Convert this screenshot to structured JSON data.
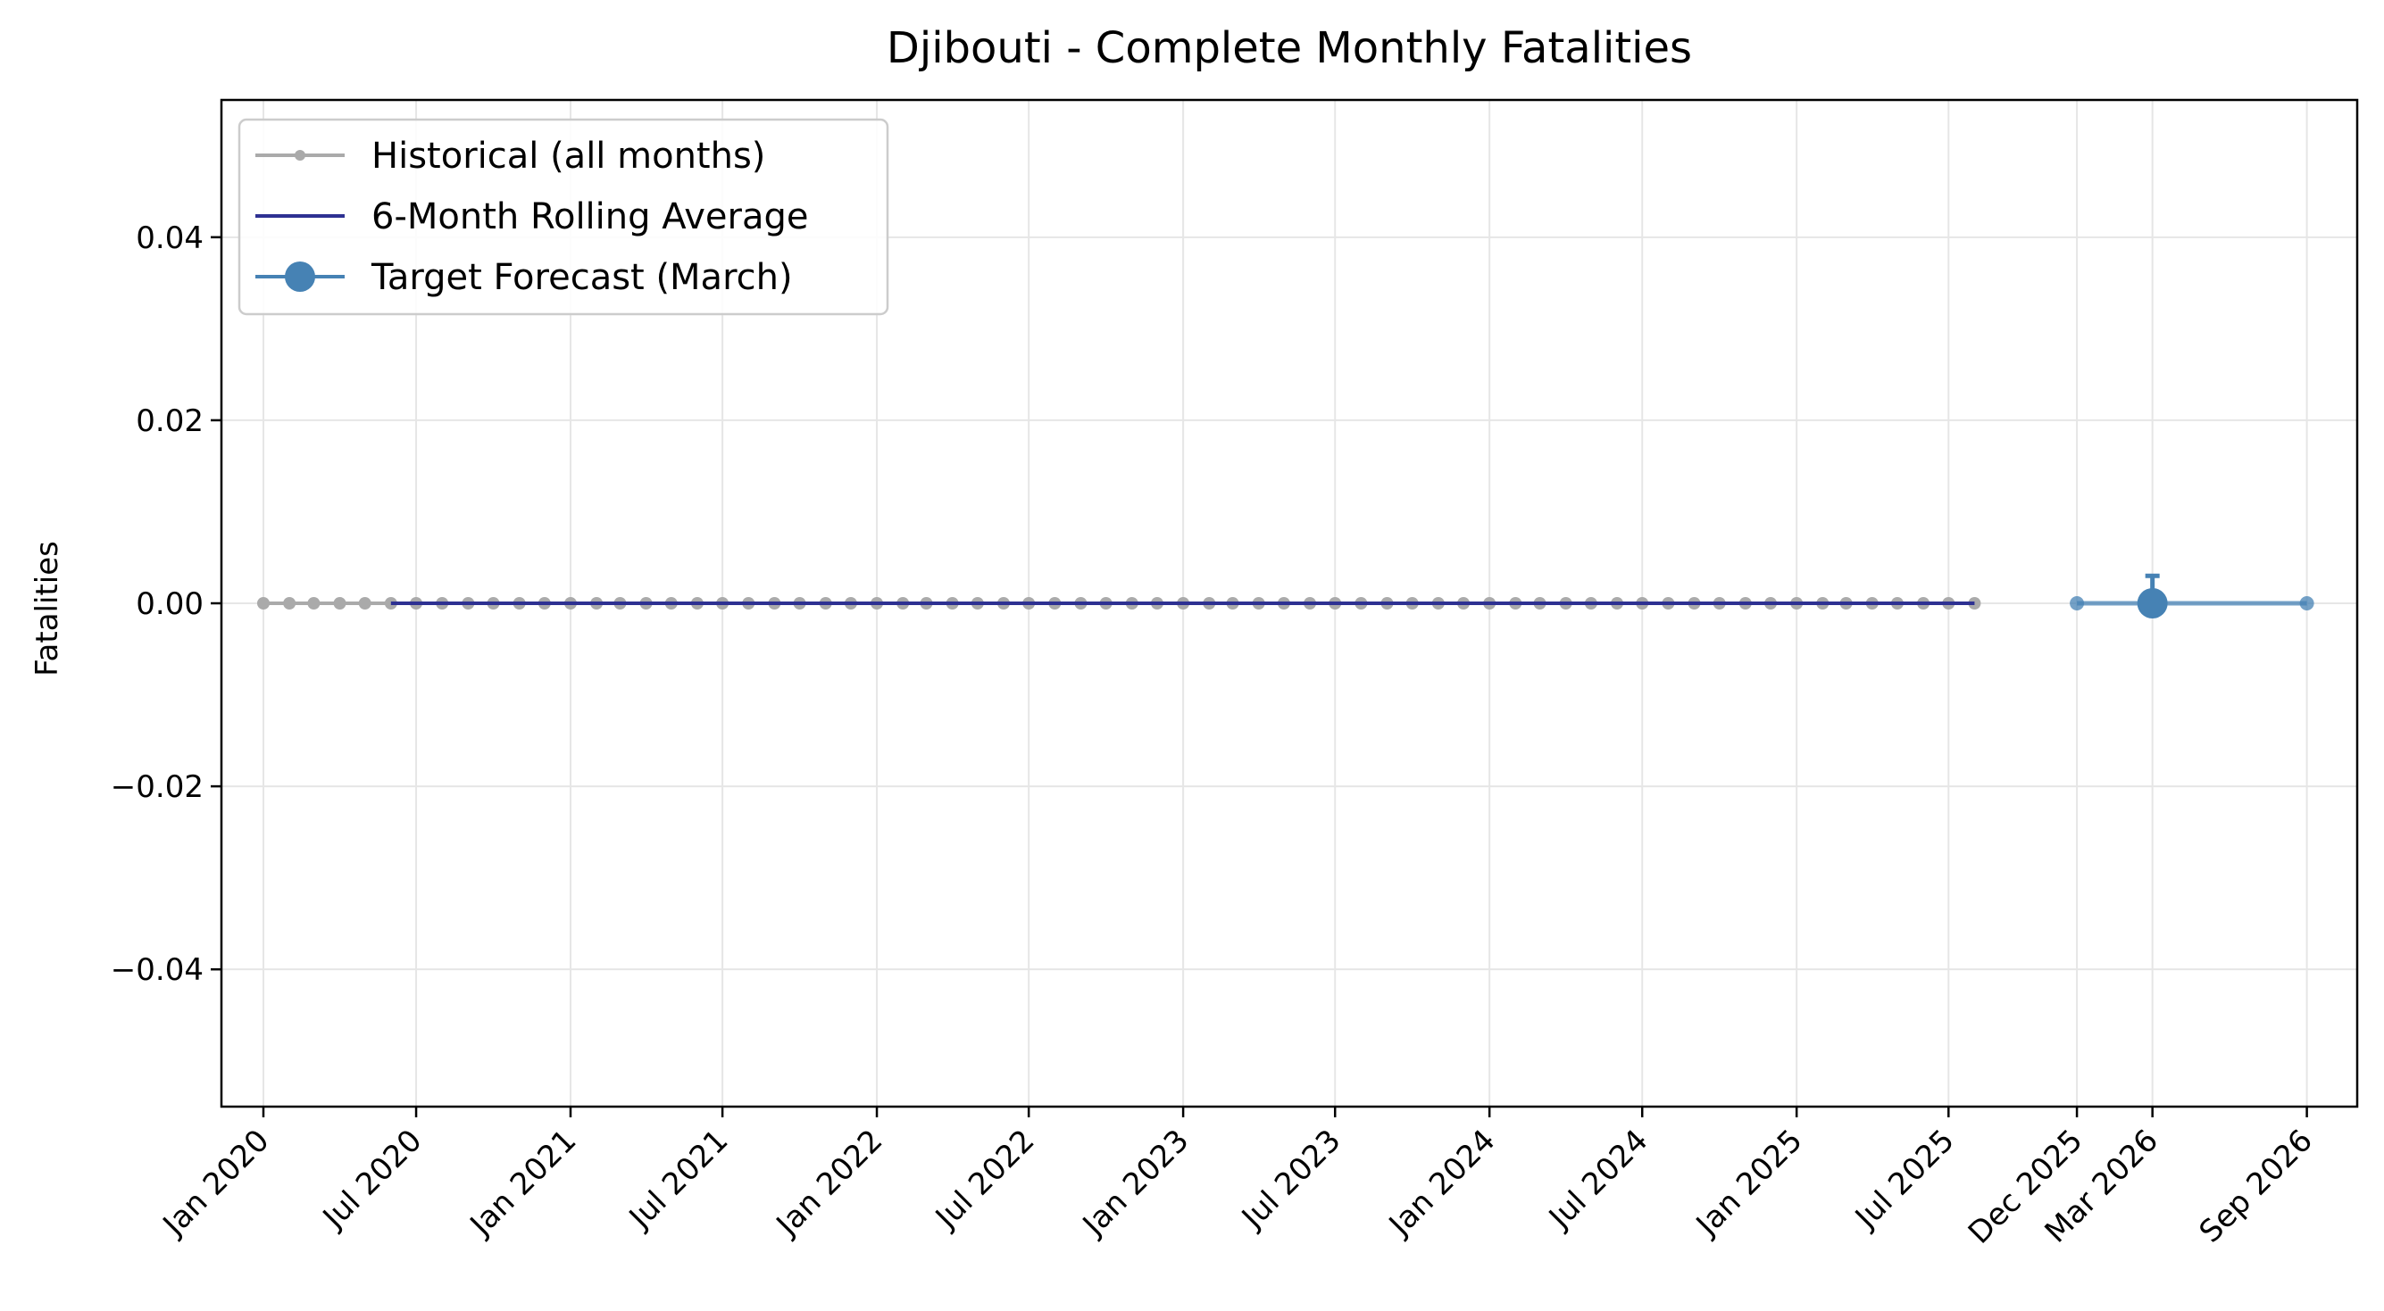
{
  "chart_data": {
    "type": "line",
    "title": "Djibouti - Complete Monthly Fatalities",
    "xlabel": "",
    "ylabel": "Fatalities",
    "ylim": [
      -0.055,
      0.055
    ],
    "xlim": [
      "2019-11-12",
      "2026-10-31"
    ],
    "yticks": [
      -0.04,
      -0.02,
      0.0,
      0.02,
      0.04
    ],
    "ytick_labels": [
      "−0.04",
      "−0.02",
      "0.00",
      "0.02",
      "0.04"
    ],
    "xticks": [
      "2020-01-01",
      "2020-07-01",
      "2021-01-01",
      "2021-07-01",
      "2022-01-01",
      "2022-07-01",
      "2023-01-01",
      "2023-07-01",
      "2024-01-01",
      "2024-07-01",
      "2025-01-01",
      "2025-07-01",
      "2025-12-01",
      "2026-03-01",
      "2026-09-01"
    ],
    "xtick_labels": [
      "Jan 2020",
      "Jul 2020",
      "Jan 2021",
      "Jul 2021",
      "Jan 2022",
      "Jul 2022",
      "Jan 2023",
      "Jul 2023",
      "Jan 2024",
      "Jul 2024",
      "Jan 2025",
      "Jul 2025",
      "Dec 2025",
      "Mar 2026",
      "Sep 2026"
    ],
    "grid": true,
    "legend_position": "upper-left",
    "series": [
      {
        "name": "Historical (all months)",
        "color": "#aaaaaa",
        "marker": "small-circle",
        "start": "2020-01-01",
        "end": "2025-08-01",
        "frequency": "monthly",
        "constant_value": 0
      },
      {
        "name": "6-Month Rolling Average",
        "color": "#2e3192",
        "marker": "none",
        "start": "2020-06-01",
        "end": "2025-08-01",
        "frequency": "monthly",
        "constant_value": 0
      },
      {
        "name": "Target Forecast (March)",
        "color": "#4682b4",
        "marker": "large-circle",
        "x": [
          "2025-12-01",
          "2026-03-01",
          "2026-09-01"
        ],
        "y": [
          0,
          0,
          0
        ],
        "highlight": "2026-03-01",
        "error_upper": 0.003
      }
    ]
  }
}
